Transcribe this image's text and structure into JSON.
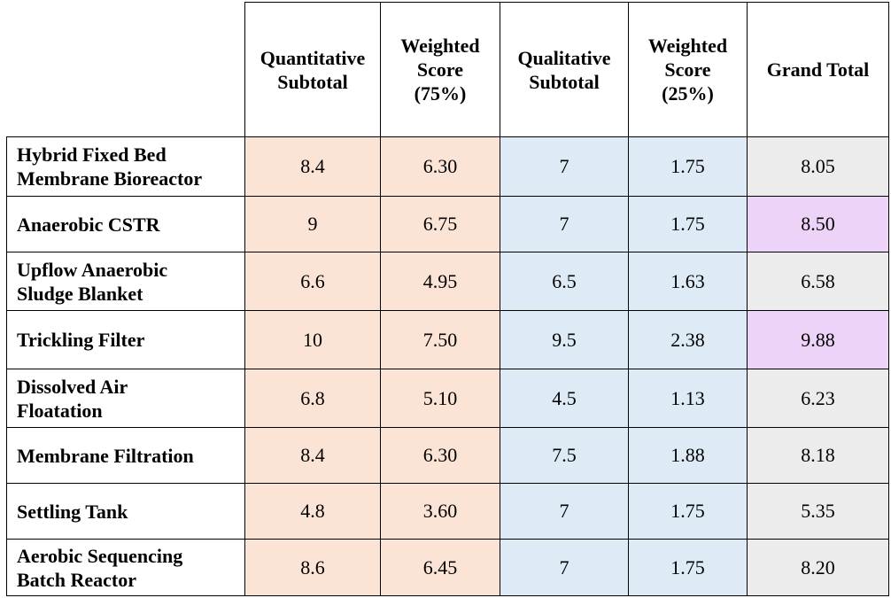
{
  "table": {
    "corner_label": "",
    "headers": [
      "Quantitative Subtotal",
      "Weighted Score (75%)",
      "Qualitative Subtotal",
      "Weighted Score (25%)",
      "Grand Total"
    ],
    "colors": {
      "quantitative_fill": "#fbe3d6",
      "qualitative_fill": "#deebf6",
      "total_fill": "#ececec",
      "highlight_fill": "#eed3f8",
      "border": "#000000"
    },
    "rows": [
      {
        "name": "Hybrid Fixed Bed Membrane Bioreactor",
        "quant_subtotal": "8.4",
        "weighted_75": "6.30",
        "qual_subtotal": "7",
        "weighted_25": "1.75",
        "grand_total": "8.05",
        "highlighted": false
      },
      {
        "name": "Anaerobic CSTR",
        "quant_subtotal": "9",
        "weighted_75": "6.75",
        "qual_subtotal": "7",
        "weighted_25": "1.75",
        "grand_total": "8.50",
        "highlighted": true
      },
      {
        "name": "Upflow Anaerobic Sludge Blanket",
        "quant_subtotal": "6.6",
        "weighted_75": "4.95",
        "qual_subtotal": "6.5",
        "weighted_25": "1.63",
        "grand_total": "6.58",
        "highlighted": false
      },
      {
        "name": "Trickling Filter",
        "quant_subtotal": "10",
        "weighted_75": "7.50",
        "qual_subtotal": "9.5",
        "weighted_25": "2.38",
        "grand_total": "9.88",
        "highlighted": true
      },
      {
        "name": "Dissolved Air Floatation",
        "quant_subtotal": "6.8",
        "weighted_75": "5.10",
        "qual_subtotal": "4.5",
        "weighted_25": "1.13",
        "grand_total": "6.23",
        "highlighted": false
      },
      {
        "name": "Membrane Filtration",
        "quant_subtotal": "8.4",
        "weighted_75": "6.30",
        "qual_subtotal": "7.5",
        "weighted_25": "1.88",
        "grand_total": "8.18",
        "highlighted": false
      },
      {
        "name": "Settling Tank",
        "quant_subtotal": "4.8",
        "weighted_75": "3.60",
        "qual_subtotal": "7",
        "weighted_25": "1.75",
        "grand_total": "5.35",
        "highlighted": false
      },
      {
        "name": "Aerobic Sequencing Batch Reactor",
        "quant_subtotal": "8.6",
        "weighted_75": "6.45",
        "qual_subtotal": "7",
        "weighted_25": "1.75",
        "grand_total": "8.20",
        "highlighted": false
      }
    ]
  }
}
